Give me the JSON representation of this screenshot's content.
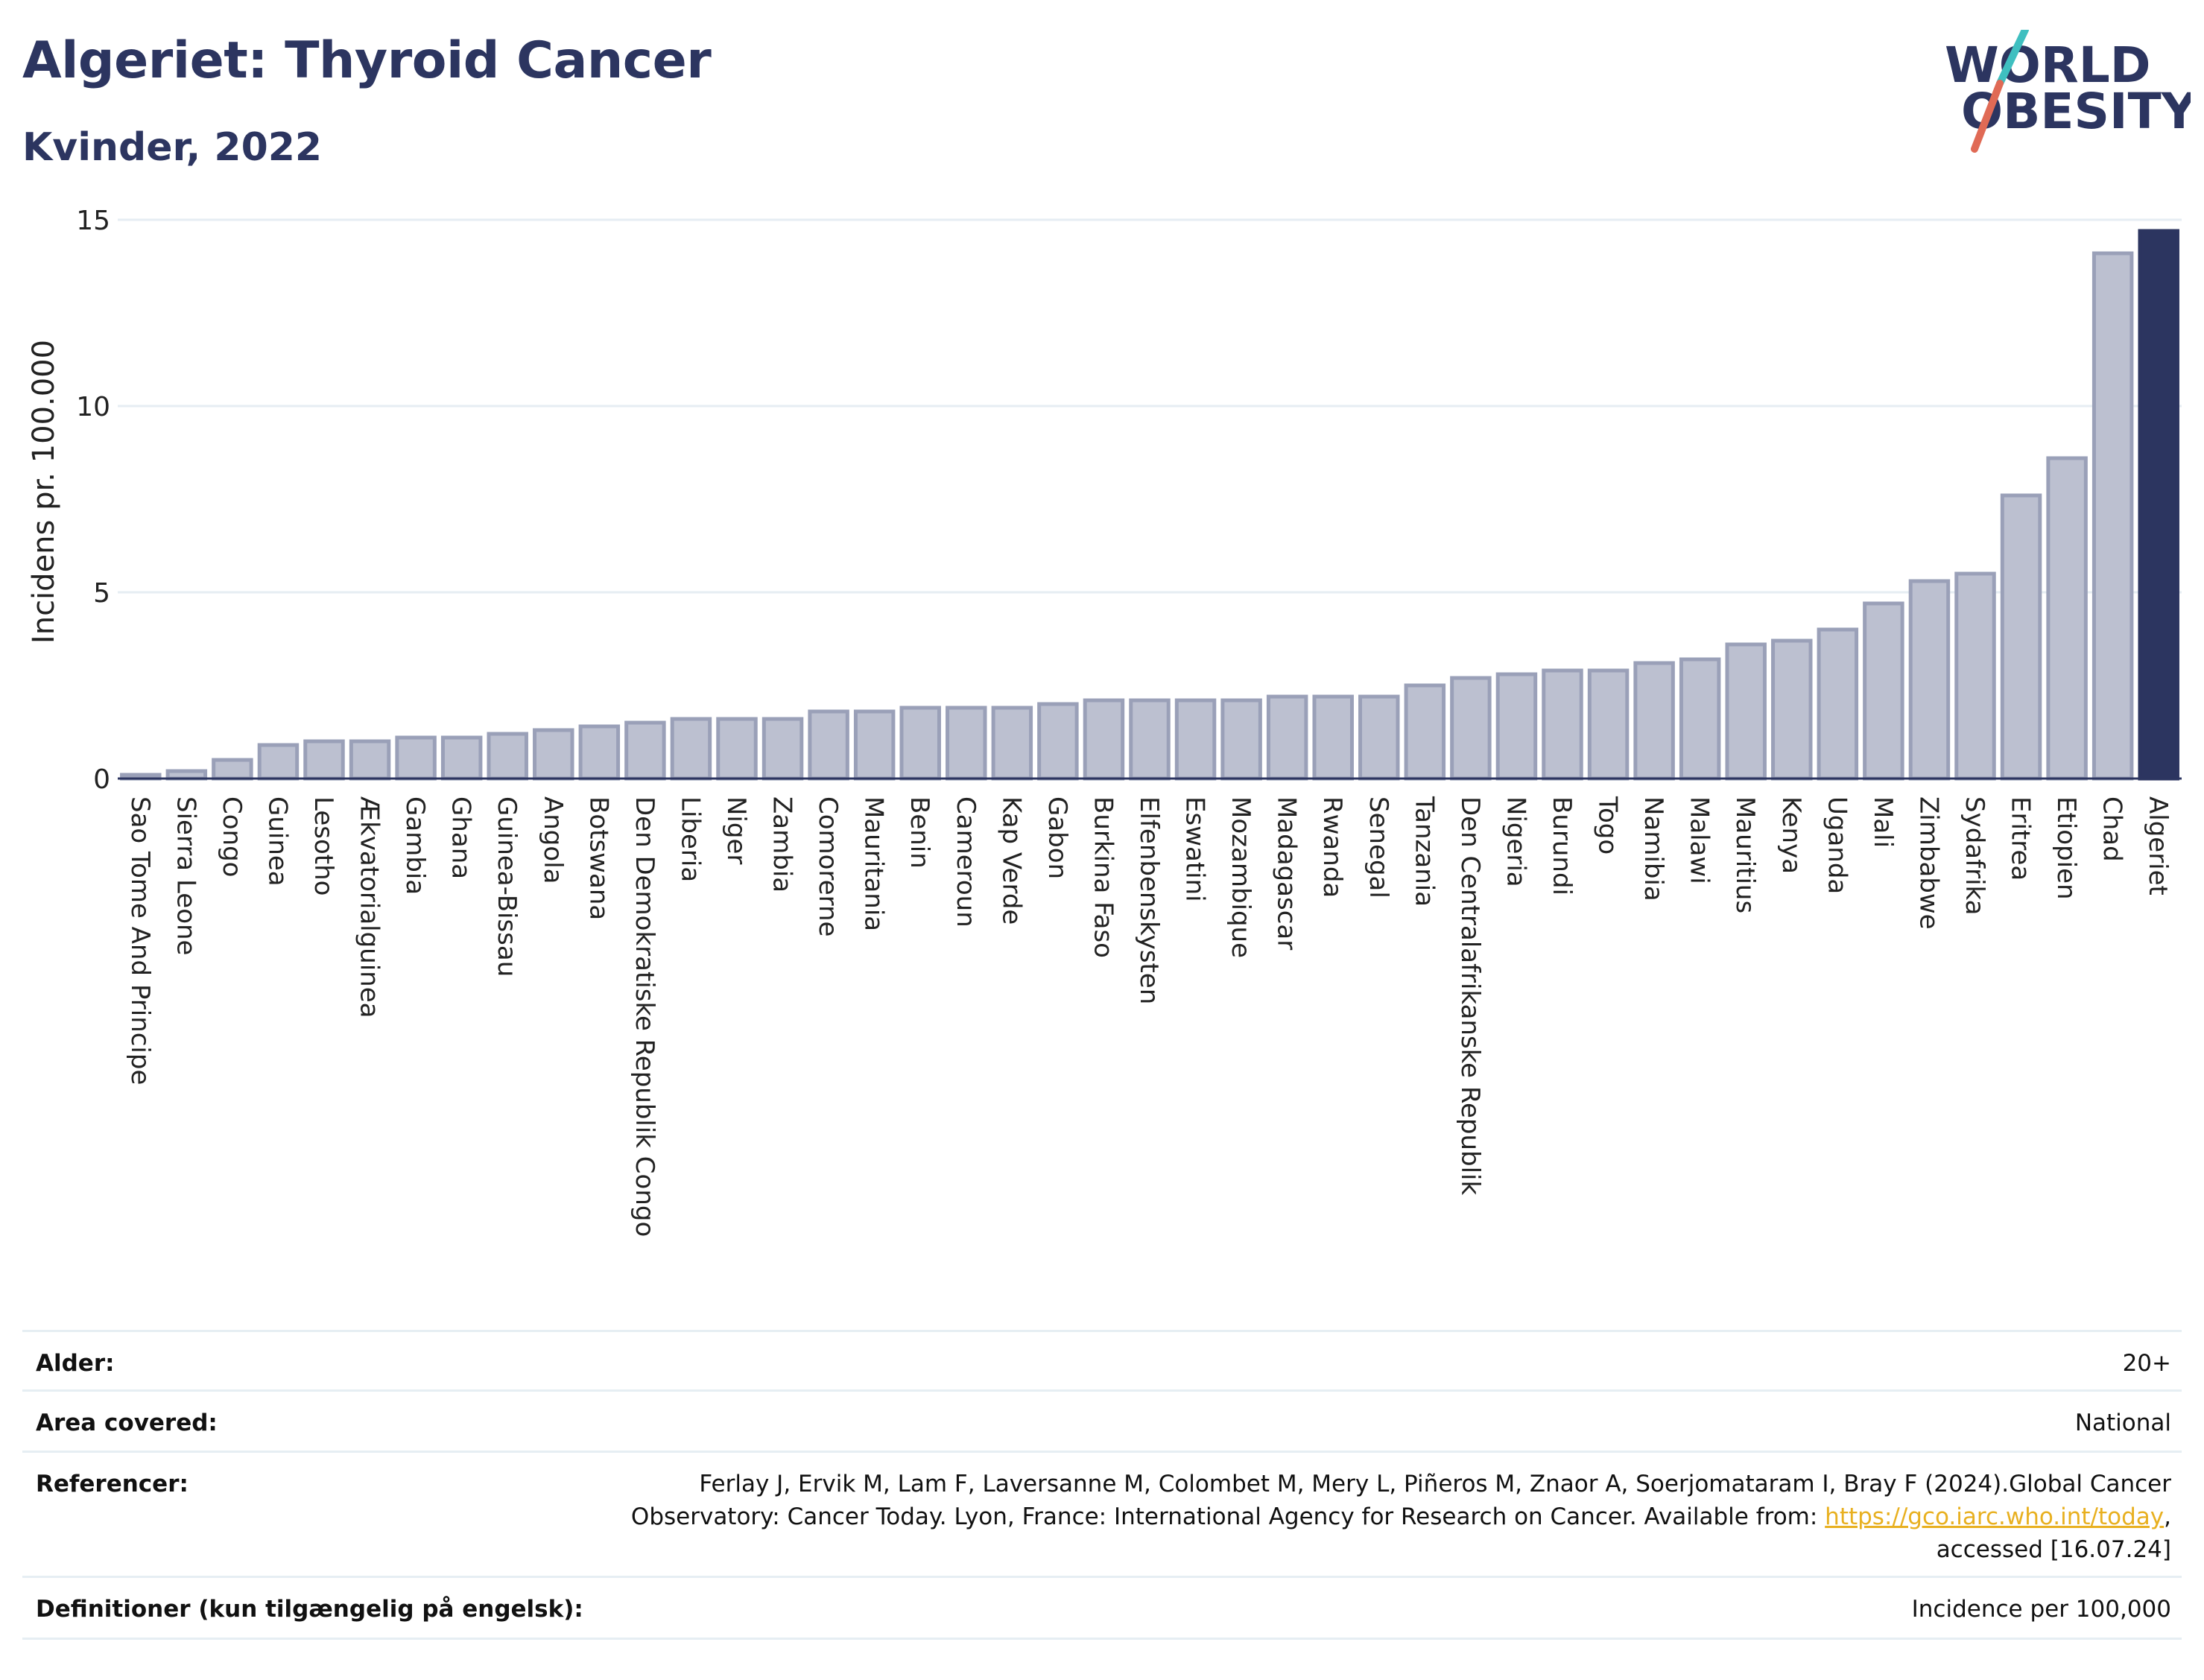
{
  "header": {
    "title": "Algeriet: Thyroid Cancer",
    "subtitle": "Kvinder, 2022"
  },
  "logo": {
    "line1": "WORLD",
    "line2": "OBESITY",
    "colors": {
      "text": "#2c3560",
      "slash_top": "#3fbfc0",
      "slash_bottom": "#e06a55"
    }
  },
  "colors": {
    "bar_fill": "#bcc0d0",
    "bar_stroke": "#9aa0b8",
    "highlight": "#2c3560",
    "grid": "#e6edf3",
    "axis_text": "#222222"
  },
  "chart_data": {
    "type": "bar",
    "title": "Algeriet: Thyroid Cancer",
    "subtitle": "Kvinder, 2022",
    "xlabel": "",
    "ylabel": "Incidens pr. 100.000",
    "ylim": [
      0,
      15
    ],
    "yticks": [
      0,
      5,
      10,
      15
    ],
    "grid": true,
    "highlight": "Algeriet",
    "categories": [
      "Sao Tome And Principe",
      "Sierra Leone",
      "Congo",
      "Guinea",
      "Lesotho",
      "Ækvatorialguinea",
      "Gambia",
      "Ghana",
      "Guinea-Bissau",
      "Angola",
      "Botswana",
      "Den Demokratiske Republik Congo",
      "Liberia",
      "Niger",
      "Zambia",
      "Comorerne",
      "Mauritania",
      "Benin",
      "Cameroun",
      "Kap Verde",
      "Gabon",
      "Burkina Faso",
      "Elfenbenskysten",
      "Eswatini",
      "Mozambique",
      "Madagascar",
      "Rwanda",
      "Senegal",
      "Tanzania",
      "Den Centralafrikanske Republik",
      "Nigeria",
      "Burundi",
      "Togo",
      "Namibia",
      "Malawi",
      "Mauritius",
      "Kenya",
      "Uganda",
      "Mali",
      "Zimbabwe",
      "Sydafrika",
      "Eritrea",
      "Etiopien",
      "Chad",
      "Algeriet"
    ],
    "values": [
      0.1,
      0.2,
      0.5,
      0.9,
      1.0,
      1.0,
      1.1,
      1.1,
      1.2,
      1.3,
      1.4,
      1.5,
      1.6,
      1.6,
      1.6,
      1.8,
      1.8,
      1.9,
      1.9,
      1.9,
      2.0,
      2.1,
      2.1,
      2.1,
      2.1,
      2.2,
      2.2,
      2.2,
      2.5,
      2.7,
      2.8,
      2.9,
      2.9,
      3.1,
      3.2,
      3.6,
      3.7,
      4.0,
      4.7,
      5.3,
      5.5,
      7.6,
      8.6,
      14.1,
      14.7
    ]
  },
  "metadata": [
    {
      "label": "Alder:",
      "value": "20+"
    },
    {
      "label": "Area covered:",
      "value": "National"
    },
    {
      "label": "Referencer:",
      "value_line1": "Ferlay J, Ervik M, Lam F, Laversanne M, Colombet M, Mery L, Piñeros M, Znaor A, Soerjomataram I, Bray F (2024).Global Cancer",
      "value_line2_pre": "Observatory: Cancer Today. Lyon, France: International Agency for Research on Cancer. Available from: ",
      "link": "https://gco.iarc.who.int/today",
      "value_line2_post": ",",
      "value_line3": "accessed [16.07.24]"
    },
    {
      "label": "Definitioner (kun tilgængelig på engelsk):",
      "value": "Incidence per 100,000"
    }
  ]
}
